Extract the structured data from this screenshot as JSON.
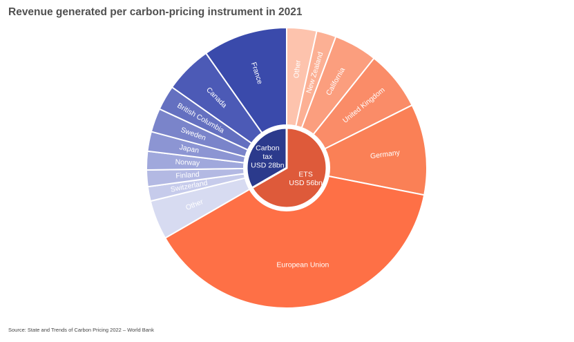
{
  "page": {
    "title": "Revenue generated per carbon-pricing instrument in 2021",
    "source": "Source: State and Trends of Carbon Pricing 2022 – World Bank"
  },
  "chart_data": {
    "type": "pie",
    "variant": "sunburst",
    "title": "Revenue generated per carbon-pricing instrument in 2021",
    "inner": [
      {
        "label_lines": [
          "ETS",
          "USD 56bn"
        ],
        "value": 56,
        "color": "#de5a3a"
      },
      {
        "label_lines": [
          "Carbon",
          "tax",
          "USD 28bn"
        ],
        "value": 28,
        "color": "#2b3a8c"
      }
    ],
    "outer": [
      {
        "parent": 0,
        "label": "Other",
        "value": 2.9,
        "color": "#fdc3ad",
        "text_color": "#ffffff"
      },
      {
        "parent": 0,
        "label": "New Zealand",
        "value": 1.9,
        "color": "#fcb094",
        "text_color": "#ffffff"
      },
      {
        "parent": 0,
        "label": "California",
        "value": 4.2,
        "color": "#fb9e7e",
        "text_color": "#ffffff"
      },
      {
        "parent": 0,
        "label": "United Kingdom",
        "value": 5.8,
        "color": "#fa8c68",
        "text_color": "#ffffff"
      },
      {
        "parent": 0,
        "label": "Germany",
        "value": 8.8,
        "color": "#fa8056",
        "text_color": "#ffffff"
      },
      {
        "parent": 0,
        "label": "European Union",
        "value": 32.4,
        "color": "#fe7046",
        "text_color": "#ffffff"
      },
      {
        "parent": 1,
        "label": "Other",
        "value": 3.8,
        "color": "#d7dbf1",
        "text_color": "#ffffff"
      },
      {
        "parent": 1,
        "label": "Switzerland",
        "value": 1.4,
        "color": "#c6cbeb",
        "text_color": "#ffffff"
      },
      {
        "parent": 1,
        "label": "Finland",
        "value": 1.6,
        "color": "#b3b9e3",
        "text_color": "#ffffff"
      },
      {
        "parent": 1,
        "label": "Norway",
        "value": 1.8,
        "color": "#a0a8dc",
        "text_color": "#ffffff"
      },
      {
        "parent": 1,
        "label": "Japan",
        "value": 1.9,
        "color": "#8c95d3",
        "text_color": "#ffffff"
      },
      {
        "parent": 1,
        "label": "Sweden",
        "value": 2.3,
        "color": "#7a84ca",
        "text_color": "#ffffff"
      },
      {
        "parent": 1,
        "label": "British Columbia",
        "value": 2.4,
        "color": "#6470c0",
        "text_color": "#ffffff"
      },
      {
        "parent": 1,
        "label": "Canada",
        "value": 4.6,
        "color": "#4c5ab6",
        "text_color": "#ffffff"
      },
      {
        "parent": 1,
        "label": "France",
        "value": 8.2,
        "color": "#3a4aab",
        "text_color": "#ffffff"
      }
    ]
  }
}
